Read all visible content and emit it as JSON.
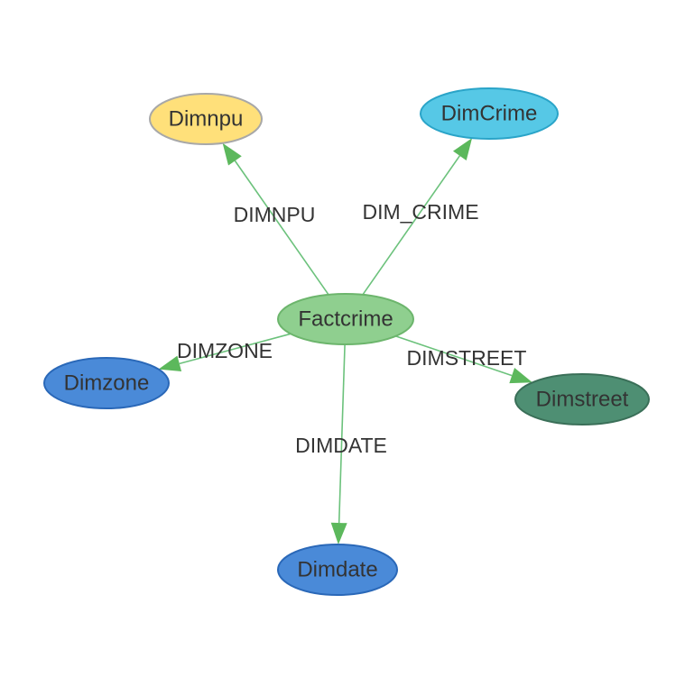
{
  "nodes": [
    {
      "id": "factcrime",
      "label": "Factcrime",
      "fill": "#8fcf8f",
      "stroke": "#6cb56c"
    },
    {
      "id": "dimnpu",
      "label": "Dimnpu",
      "fill": "#ffe07a",
      "stroke": "#a8a8a8"
    },
    {
      "id": "dimcrime",
      "label": "DimCrime",
      "fill": "#56c8e6",
      "stroke": "#2aa4c8"
    },
    {
      "id": "dimzone",
      "label": "Dimzone",
      "fill": "#4a8ad8",
      "stroke": "#2a68b8"
    },
    {
      "id": "dimstreet",
      "label": "Dimstreet",
      "fill": "#4e8f73",
      "stroke": "#3a6f58"
    },
    {
      "id": "dimdate",
      "label": "Dimdate",
      "fill": "#4a8ad8",
      "stroke": "#2a68b8"
    }
  ],
  "edges": [
    {
      "from": "factcrime",
      "to": "dimnpu",
      "label": "DIMNPU"
    },
    {
      "from": "factcrime",
      "to": "dimcrime",
      "label": "DIM_CRIME"
    },
    {
      "from": "factcrime",
      "to": "dimzone",
      "label": "DIMZONE"
    },
    {
      "from": "factcrime",
      "to": "dimstreet",
      "label": "DIMSTREET"
    },
    {
      "from": "factcrime",
      "to": "dimdate",
      "label": "DIMDATE"
    }
  ],
  "colors": {
    "edge": "#6cc27c",
    "arrow": "#5cb85c",
    "text": "#333333",
    "background": "#ffffff"
  }
}
